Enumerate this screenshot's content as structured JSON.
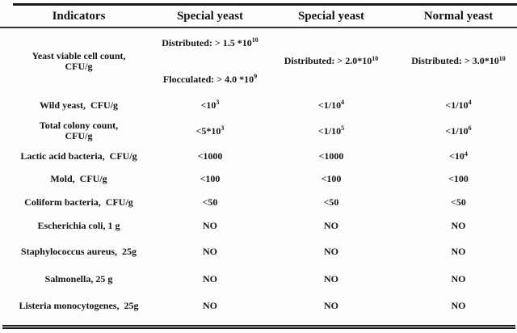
{
  "page": {
    "background_color": "#fdfdfc",
    "text_color": "#151515",
    "rule_color": "#1c1c1c"
  },
  "table": {
    "columns": [
      "Indicators",
      "Special yeast",
      "Special yeast",
      "Normal yeast"
    ],
    "rows": [
      {
        "label": "Yeast viable cell count,\nCFU/g",
        "v1_top": "Distributed: > 1.5 *10^{10}",
        "v1_bottom": "Flocculated: > 4.0 *10^{9}",
        "v2": "Distributed: > 2.0*10^{10}",
        "v3": "Distributed: > 3.0*10^{10}"
      },
      {
        "label": "Wild yeast,  CFU/g",
        "v1": "<10^{3}",
        "v2": "<1/10^{4}",
        "v3": "<1/10^{4}"
      },
      {
        "label": "Total colony count,\nCFU/g",
        "v1": "<5*10^{3}",
        "v2": "<1/10^{5}",
        "v3": "<1/10^{6}"
      },
      {
        "label": "Lactic acid bacteria,  CFU/g",
        "v1": "<1000",
        "v2": "<1000",
        "v3": "<10^{4}"
      },
      {
        "label": "Mold,  CFU/g",
        "v1": "<100",
        "v2": "<100",
        "v3": "<100"
      },
      {
        "label": "Coliform bacteria,  CFU/g",
        "v1": "<50",
        "v2": "<50",
        "v3": "<50"
      },
      {
        "label": "Escherichia coli, 1 g",
        "v1": "NO",
        "v2": "NO",
        "v3": "NO"
      },
      {
        "label": "Staphylococcus aureus,  25g",
        "v1": "NO",
        "v2": "NO",
        "v3": "NO"
      },
      {
        "label": "Salmonella, 25 g",
        "v1": "NO",
        "v2": "NO",
        "v3": "NO"
      },
      {
        "label": "Listeria monocytogenes,  25g",
        "v1": "NO",
        "v2": "NO",
        "v3": "NO"
      }
    ]
  }
}
